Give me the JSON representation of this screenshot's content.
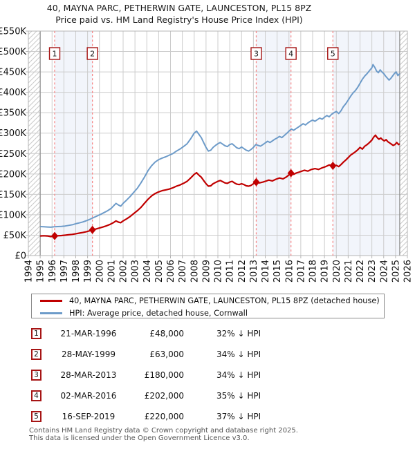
{
  "chart_data": {
    "type": "line",
    "title": "40, MAYNA PARC, PETHERWIN GATE, LAUNCESTON, PL15 8PZ",
    "subtitle": "Price paid vs. HM Land Registry's House Price Index (HPI)",
    "x_range": [
      1994,
      2026
    ],
    "y_range_gbp": [
      0,
      550000
    ],
    "y_tick_step_gbp": 50000,
    "grid": true,
    "legend_position": "below",
    "y_tick_labels": [
      "£0",
      "£50K",
      "£100K",
      "£150K",
      "£200K",
      "£250K",
      "£300K",
      "£350K",
      "£400K",
      "£450K",
      "£500K",
      "£550K"
    ],
    "x_tick_labels": [
      "1994",
      "1995",
      "1996",
      "1997",
      "1998",
      "1999",
      "2000",
      "2001",
      "2002",
      "2003",
      "2004",
      "2005",
      "2006",
      "2007",
      "2008",
      "2009",
      "2010",
      "2011",
      "2012",
      "2013",
      "2014",
      "2015",
      "2016",
      "2017",
      "2018",
      "2019",
      "2020",
      "2021",
      "2022",
      "2023",
      "2024",
      "2025",
      "2026"
    ],
    "colors": {
      "property_line": "#c00000",
      "hpi_line": "#6d9bc9",
      "sale_dashed_line": "#f58a8a",
      "sale_badge_border": "#a61414",
      "ownership_band": "#f2f5fb",
      "gridline": "#cccccc",
      "hatch": "#c9c9c9"
    },
    "no_data_hatch_years": [
      [
        1994,
        1995
      ],
      [
        2025.35,
        2026
      ]
    ],
    "ownership_bands": [
      [
        1996.22,
        1999.41
      ],
      [
        2013.24,
        2016.17
      ],
      [
        2019.71,
        2025.35
      ]
    ],
    "sales": [
      {
        "n": "1",
        "date": "21-MAR-1996",
        "year": 1996.22,
        "price": "£48,000",
        "price_gbp": 48000,
        "hpi_diff": "32% ↓ HPI"
      },
      {
        "n": "2",
        "date": "28-MAY-1999",
        "year": 1999.41,
        "price": "£63,000",
        "price_gbp": 63000,
        "hpi_diff": "34% ↓ HPI"
      },
      {
        "n": "3",
        "date": "28-MAR-2013",
        "year": 2013.24,
        "price": "£180,000",
        "price_gbp": 180000,
        "hpi_diff": "34% ↓ HPI"
      },
      {
        "n": "4",
        "date": "02-MAR-2016",
        "year": 2016.17,
        "price": "£202,000",
        "price_gbp": 202000,
        "hpi_diff": "35% ↓ HPI"
      },
      {
        "n": "5",
        "date": "16-SEP-2019",
        "year": 2019.71,
        "price": "£220,000",
        "price_gbp": 220000,
        "hpi_diff": "37% ↓ HPI"
      }
    ],
    "series": [
      {
        "name": "40, MAYNA PARC, PETHERWIN GATE, LAUNCESTON, PL15 8PZ (detached house)",
        "color": "#c00000",
        "points_year_gbp_k": [
          [
            1995,
            48
          ],
          [
            1995.3,
            48.5
          ],
          [
            1995.6,
            48
          ],
          [
            1995.9,
            46.5
          ],
          [
            1996.22,
            48
          ],
          [
            1996.5,
            48.5
          ],
          [
            1996.8,
            49
          ],
          [
            1997.1,
            50
          ],
          [
            1997.4,
            51
          ],
          [
            1997.7,
            52
          ],
          [
            1998,
            53.5
          ],
          [
            1998.3,
            55
          ],
          [
            1998.6,
            56.5
          ],
          [
            1998.9,
            58.5
          ],
          [
            1999.2,
            61
          ],
          [
            1999.41,
            63
          ],
          [
            1999.7,
            65
          ],
          [
            2000,
            67.5
          ],
          [
            2000.3,
            70
          ],
          [
            2000.6,
            73
          ],
          [
            2000.9,
            76.5
          ],
          [
            2001.2,
            81
          ],
          [
            2001.4,
            85
          ],
          [
            2001.6,
            82
          ],
          [
            2001.8,
            80.5
          ],
          [
            2002,
            85
          ],
          [
            2002.3,
            90
          ],
          [
            2002.6,
            96
          ],
          [
            2002.9,
            103
          ],
          [
            2003.2,
            110
          ],
          [
            2003.5,
            118
          ],
          [
            2003.8,
            128
          ],
          [
            2004.1,
            138
          ],
          [
            2004.4,
            146
          ],
          [
            2004.7,
            152
          ],
          [
            2005,
            156
          ],
          [
            2005.3,
            159
          ],
          [
            2005.6,
            161
          ],
          [
            2005.9,
            163
          ],
          [
            2006.2,
            166
          ],
          [
            2006.5,
            170
          ],
          [
            2006.8,
            173
          ],
          [
            2007.1,
            177
          ],
          [
            2007.4,
            182
          ],
          [
            2007.7,
            190
          ],
          [
            2008,
            199
          ],
          [
            2008.2,
            203
          ],
          [
            2008.4,
            197
          ],
          [
            2008.6,
            192
          ],
          [
            2008.8,
            184
          ],
          [
            2009,
            176
          ],
          [
            2009.2,
            170
          ],
          [
            2009.4,
            171
          ],
          [
            2009.6,
            176
          ],
          [
            2009.8,
            179
          ],
          [
            2010,
            182
          ],
          [
            2010.2,
            184
          ],
          [
            2010.4,
            181
          ],
          [
            2010.6,
            178
          ],
          [
            2010.8,
            177
          ],
          [
            2011,
            180
          ],
          [
            2011.2,
            182
          ],
          [
            2011.4,
            178
          ],
          [
            2011.6,
            175
          ],
          [
            2011.8,
            174
          ],
          [
            2012,
            176
          ],
          [
            2012.2,
            174
          ],
          [
            2012.4,
            171
          ],
          [
            2012.6,
            170
          ],
          [
            2012.8,
            172
          ],
          [
            2013,
            176
          ],
          [
            2013.24,
            180
          ],
          [
            2013.5,
            178
          ],
          [
            2013.8,
            180
          ],
          [
            2014,
            182
          ],
          [
            2014.3,
            185
          ],
          [
            2014.6,
            183
          ],
          [
            2014.9,
            187
          ],
          [
            2015.2,
            190
          ],
          [
            2015.5,
            188
          ],
          [
            2015.8,
            193
          ],
          [
            2016.17,
            202
          ],
          [
            2016.4,
            199
          ],
          [
            2016.6,
            202
          ],
          [
            2016.8,
            204
          ],
          [
            2017,
            206
          ],
          [
            2017.3,
            209
          ],
          [
            2017.6,
            207
          ],
          [
            2017.9,
            211
          ],
          [
            2018.2,
            213
          ],
          [
            2018.5,
            211
          ],
          [
            2018.8,
            215
          ],
          [
            2019.1,
            218
          ],
          [
            2019.4,
            222
          ],
          [
            2019.71,
            220
          ],
          [
            2020,
            221
          ],
          [
            2020.2,
            218
          ],
          [
            2020.4,
            223
          ],
          [
            2020.6,
            229
          ],
          [
            2020.8,
            234
          ],
          [
            2021,
            240
          ],
          [
            2021.2,
            246
          ],
          [
            2021.4,
            250
          ],
          [
            2021.6,
            254
          ],
          [
            2021.8,
            259
          ],
          [
            2022,
            265
          ],
          [
            2022.2,
            261
          ],
          [
            2022.4,
            268
          ],
          [
            2022.6,
            272
          ],
          [
            2022.8,
            277
          ],
          [
            2023,
            283
          ],
          [
            2023.15,
            290
          ],
          [
            2023.3,
            295
          ],
          [
            2023.45,
            289
          ],
          [
            2023.6,
            285
          ],
          [
            2023.75,
            288
          ],
          [
            2023.9,
            284
          ],
          [
            2024.05,
            281
          ],
          [
            2024.2,
            284
          ],
          [
            2024.35,
            279
          ],
          [
            2024.5,
            276
          ],
          [
            2024.65,
            273
          ],
          [
            2024.8,
            270
          ],
          [
            2024.95,
            272
          ],
          [
            2025.1,
            277
          ],
          [
            2025.25,
            272
          ],
          [
            2025.35,
            274
          ]
        ]
      },
      {
        "name": "HPI: Average price, detached house, Cornwall",
        "color": "#6d9bc9",
        "points_year_gbp_k": [
          [
            1995,
            71
          ],
          [
            1995.3,
            70.5
          ],
          [
            1995.6,
            70
          ],
          [
            1995.9,
            69.5
          ],
          [
            1996.2,
            70.5
          ],
          [
            1996.5,
            71
          ],
          [
            1996.8,
            71.5
          ],
          [
            1997.1,
            72.5
          ],
          [
            1997.4,
            74
          ],
          [
            1997.7,
            75.5
          ],
          [
            1998,
            78
          ],
          [
            1998.3,
            80
          ],
          [
            1998.6,
            82.5
          ],
          [
            1998.9,
            85.5
          ],
          [
            1999.2,
            89
          ],
          [
            1999.5,
            93
          ],
          [
            1999.8,
            97
          ],
          [
            2000.1,
            101
          ],
          [
            2000.4,
            105.5
          ],
          [
            2000.7,
            110
          ],
          [
            2001,
            116
          ],
          [
            2001.2,
            122
          ],
          [
            2001.4,
            128
          ],
          [
            2001.6,
            124
          ],
          [
            2001.8,
            121
          ],
          [
            2002,
            128
          ],
          [
            2002.3,
            136
          ],
          [
            2002.6,
            145
          ],
          [
            2002.9,
            155
          ],
          [
            2003.2,
            165
          ],
          [
            2003.5,
            178
          ],
          [
            2003.8,
            192
          ],
          [
            2004.1,
            208
          ],
          [
            2004.4,
            220
          ],
          [
            2004.7,
            229
          ],
          [
            2005,
            235
          ],
          [
            2005.3,
            239
          ],
          [
            2005.6,
            242
          ],
          [
            2005.9,
            246
          ],
          [
            2006.2,
            250
          ],
          [
            2006.5,
            256
          ],
          [
            2006.8,
            261
          ],
          [
            2007.1,
            267
          ],
          [
            2007.4,
            274
          ],
          [
            2007.7,
            286
          ],
          [
            2008,
            300
          ],
          [
            2008.2,
            305
          ],
          [
            2008.4,
            297
          ],
          [
            2008.6,
            289
          ],
          [
            2008.8,
            277
          ],
          [
            2009,
            265
          ],
          [
            2009.2,
            256
          ],
          [
            2009.4,
            258
          ],
          [
            2009.6,
            265
          ],
          [
            2009.8,
            270
          ],
          [
            2010,
            274
          ],
          [
            2010.2,
            277
          ],
          [
            2010.4,
            273
          ],
          [
            2010.6,
            269
          ],
          [
            2010.8,
            267
          ],
          [
            2011,
            272
          ],
          [
            2011.2,
            274
          ],
          [
            2011.4,
            269
          ],
          [
            2011.6,
            264
          ],
          [
            2011.8,
            262
          ],
          [
            2012,
            266
          ],
          [
            2012.2,
            262
          ],
          [
            2012.4,
            258
          ],
          [
            2012.6,
            256
          ],
          [
            2012.8,
            260
          ],
          [
            2013,
            265
          ],
          [
            2013.2,
            272
          ],
          [
            2013.4,
            270
          ],
          [
            2013.6,
            268
          ],
          [
            2013.8,
            272
          ],
          [
            2014,
            276
          ],
          [
            2014.2,
            280
          ],
          [
            2014.4,
            277
          ],
          [
            2014.6,
            281
          ],
          [
            2014.8,
            285
          ],
          [
            2015,
            288
          ],
          [
            2015.2,
            292
          ],
          [
            2015.4,
            289
          ],
          [
            2015.6,
            294
          ],
          [
            2015.8,
            299
          ],
          [
            2016,
            305
          ],
          [
            2016.2,
            310
          ],
          [
            2016.4,
            307
          ],
          [
            2016.6,
            311
          ],
          [
            2016.8,
            315
          ],
          [
            2017,
            319
          ],
          [
            2017.2,
            323
          ],
          [
            2017.4,
            320
          ],
          [
            2017.6,
            325
          ],
          [
            2017.8,
            329
          ],
          [
            2018,
            332
          ],
          [
            2018.2,
            329
          ],
          [
            2018.4,
            333
          ],
          [
            2018.6,
            337
          ],
          [
            2018.8,
            334
          ],
          [
            2019,
            339
          ],
          [
            2019.2,
            343
          ],
          [
            2019.4,
            340
          ],
          [
            2019.6,
            346
          ],
          [
            2019.8,
            350
          ],
          [
            2020,
            353
          ],
          [
            2020.2,
            348
          ],
          [
            2020.4,
            355
          ],
          [
            2020.6,
            365
          ],
          [
            2020.8,
            372
          ],
          [
            2021,
            381
          ],
          [
            2021.2,
            390
          ],
          [
            2021.4,
            398
          ],
          [
            2021.6,
            404
          ],
          [
            2021.8,
            412
          ],
          [
            2022,
            422
          ],
          [
            2022.2,
            432
          ],
          [
            2022.4,
            440
          ],
          [
            2022.6,
            446
          ],
          [
            2022.8,
            453
          ],
          [
            2023,
            460
          ],
          [
            2023.1,
            468
          ],
          [
            2023.25,
            461
          ],
          [
            2023.4,
            452
          ],
          [
            2023.55,
            448
          ],
          [
            2023.7,
            455
          ],
          [
            2023.85,
            450
          ],
          [
            2024,
            446
          ],
          [
            2024.15,
            440
          ],
          [
            2024.3,
            435
          ],
          [
            2024.45,
            430
          ],
          [
            2024.6,
            434
          ],
          [
            2024.75,
            440
          ],
          [
            2024.9,
            446
          ],
          [
            2025.05,
            450
          ],
          [
            2025.2,
            441
          ],
          [
            2025.35,
            446
          ]
        ]
      }
    ]
  },
  "footer": {
    "line1": "Contains HM Land Registry data © Crown copyright and database right 2025.",
    "line2": "This data is licensed under the Open Government Licence v3.0."
  }
}
